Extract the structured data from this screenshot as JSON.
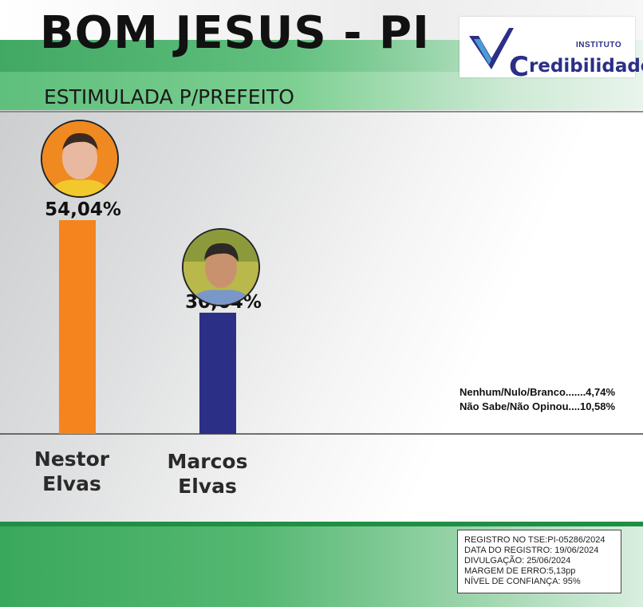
{
  "header": {
    "title": "BOM JESUS - PI",
    "subtitle": "ESTIMULADA P/PREFEITO"
  },
  "logo": {
    "small_text": "INSTITUTO",
    "initial": "C",
    "rest": "redibilidade"
  },
  "chart_data": {
    "type": "bar",
    "categories": [
      "Nestor Elvas",
      "Marcos Elvas"
    ],
    "category_lines": [
      [
        "Nestor",
        "Elvas"
      ],
      [
        "Marcos",
        "Elvas"
      ]
    ],
    "values": [
      54.04,
      30.64
    ],
    "value_labels": [
      "54,04%",
      "30,64%"
    ],
    "colors": [
      "#f5841f",
      "#2b2f86"
    ],
    "ylim": [
      0,
      60
    ],
    "grid": false
  },
  "others": {
    "line1": "Nenhum/Nulo/Branco.......4,74%",
    "line2": "Não Sabe/Não Opinou....10,58%"
  },
  "info": {
    "registro": "REGISTRO NO TSE:PI-05286/2024",
    "data_registro": "DATA DO REGISTRO: 19/06/2024",
    "divulgacao": "DIVULGAÇÃO: 25/06/2024",
    "margem": "MARGEM DE ERRO:5,13pp",
    "confianca": "NÍVEL DE CONFIANÇA: 95%"
  },
  "colors": {
    "green": "#3aa85c",
    "orange": "#f5841f",
    "navy": "#2b2f86"
  }
}
